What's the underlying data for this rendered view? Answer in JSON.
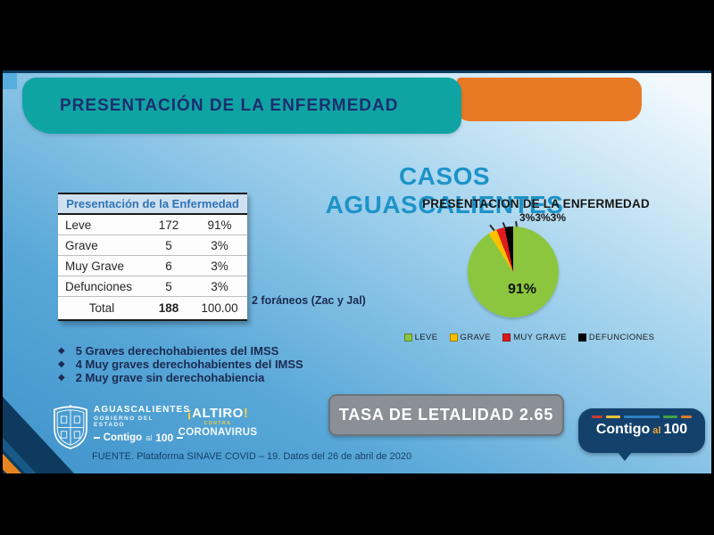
{
  "slide": {
    "banner": {
      "text": "PRESENTACIÓN DE LA ENFERMEDAD",
      "teal": "#10a3a4",
      "orange": "#e87a25",
      "text_color": "#1b2f6e"
    },
    "title": {
      "text": "CASOS AGUASCALIENTES",
      "color": "#1e93c8"
    },
    "annotation": "2 foráneos (Zac y Jal)",
    "bullet_glyph": "◆",
    "notes": [
      "5 Graves derechohabientes del IMSS",
      "4 Muy graves derechohabientes del IMSS",
      "2 Muy grave sin derechohabiencia"
    ],
    "lethality_box": {
      "text": "TASA DE LETALIDAD 2.65",
      "bg": "#8a9096"
    },
    "footer_source": "FUENTE. Plataforma SINAVE COVID – 19. Datos del 26 de abril de 2020"
  },
  "table": {
    "title": "Presentación de la Enfermedad",
    "rows": [
      {
        "label": "Leve",
        "value": "172",
        "pct": "91%"
      },
      {
        "label": "Grave",
        "value": "5",
        "pct": "3%"
      },
      {
        "label": "Muy Grave",
        "value": "6",
        "pct": "3%"
      },
      {
        "label": "Defunciones",
        "value": "5",
        "pct": "3%"
      }
    ],
    "total": {
      "label": "Total",
      "value": "188",
      "pct": "100.00"
    }
  },
  "chart_data": {
    "type": "pie",
    "title": "PRESENTACION DE LA ENFERMEDAD",
    "categories": [
      "LEVE",
      "GRAVE",
      "MUY GRAVE",
      "DEFUNCIONES"
    ],
    "values": [
      91,
      3,
      3,
      3
    ],
    "counts": [
      172,
      5,
      6,
      5
    ],
    "colors": [
      "#8cc63e",
      "#ffc000",
      "#e01b1b",
      "#000000"
    ],
    "data_labels": {
      "inside": "91%",
      "outside": "3%3%3%"
    },
    "legend_position": "bottom",
    "start_angle_deg": 0,
    "direction": "clockwise"
  },
  "logos": {
    "gobierno": {
      "line1": "AGUASCALIENTES",
      "line2": "GOBIERNO DEL ESTADO",
      "line3_a": "Contigo",
      "line3_b": "al",
      "line3_c": "100"
    },
    "altiro": {
      "bang_open": "¡",
      "word": "ALTIRO",
      "bang_close": "!",
      "line2": "CONTRA",
      "line3": "CORONAVIRUS"
    },
    "contigo_badge": {
      "a": "Contigo",
      "b": "al",
      "c": "100",
      "dash_colors": [
        "#c23b33",
        "#e8c23a",
        "#2d7fc1",
        "#43a047",
        "#d97b2d"
      ],
      "dash_widths": [
        12,
        16,
        40,
        16,
        12
      ]
    }
  }
}
